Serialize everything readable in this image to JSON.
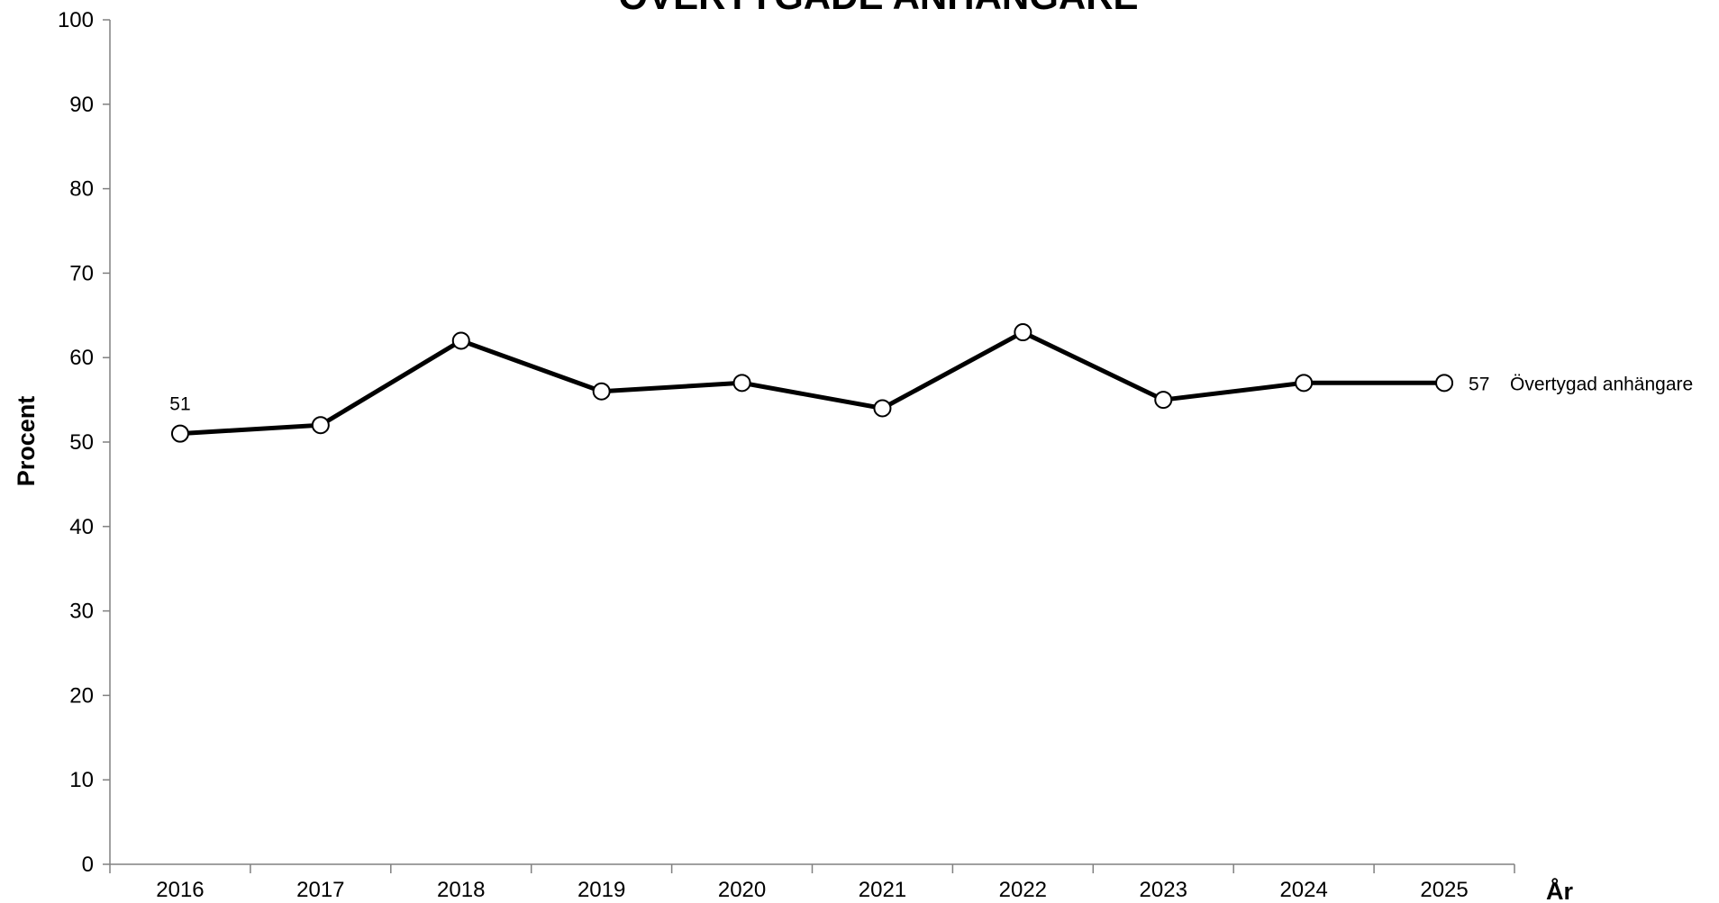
{
  "chart_data": {
    "type": "line",
    "title": "ÖVERTYGADE ANHÄNGARE",
    "ylabel": "Procent",
    "xlabel": "År",
    "ylim": [
      0,
      100
    ],
    "yticks": [
      0,
      10,
      20,
      30,
      40,
      50,
      60,
      70,
      80,
      90,
      100
    ],
    "categories": [
      "2016",
      "2017",
      "2018",
      "2019",
      "2020",
      "2021",
      "2022",
      "2023",
      "2024",
      "2025"
    ],
    "series": [
      {
        "name": "Övertygad anhängare",
        "values": [
          51,
          52,
          62,
          56,
          57,
          54,
          63,
          55,
          57,
          57
        ],
        "color": "#000000",
        "marker": "circle-open"
      }
    ],
    "data_labels": [
      {
        "index": 0,
        "text": "51"
      },
      {
        "index": 9,
        "text": "57"
      }
    ],
    "grid": false,
    "legend": "inline-right-of-last-point"
  }
}
